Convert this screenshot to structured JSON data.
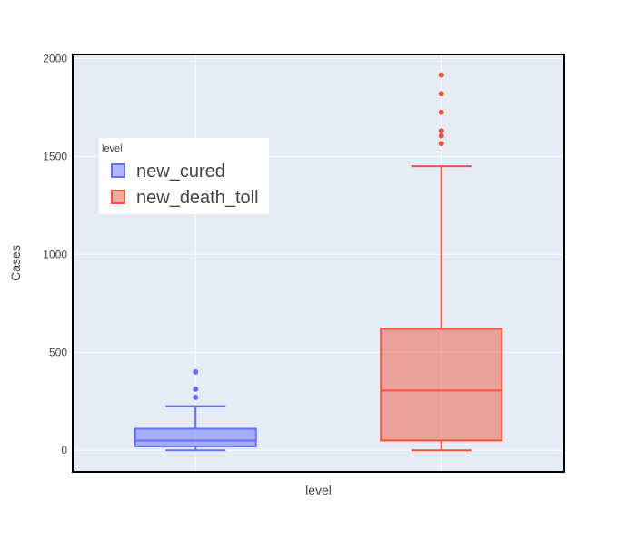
{
  "chart_data": {
    "type": "box",
    "xlabel": "level",
    "ylabel": "Cases",
    "ylim": [
      -110,
      2020
    ],
    "yticks": [
      0,
      500,
      1000,
      1500,
      2000
    ],
    "yticklabels": [
      "0",
      "500",
      "1000",
      "1500",
      "2000"
    ],
    "grid": true,
    "legend": {
      "title": "level",
      "placement": "upper-left inside plot",
      "entries": [
        "new_cured",
        "new_death_toll"
      ]
    },
    "series": [
      {
        "name": "new_cured",
        "color": "#636efa",
        "fill": "rgba(99,110,250,0.5)",
        "lower_fence": 0,
        "q1": 20,
        "median": 50,
        "q3": 110,
        "upper_fence": 225,
        "outliers": [
          270,
          312,
          400
        ]
      },
      {
        "name": "new_death_toll",
        "color": "#ef553b",
        "fill": "rgba(239,85,59,0.5)",
        "lower_fence": 0,
        "q1": 50,
        "median": 305,
        "q3": 620,
        "upper_fence": 1450,
        "outliers": [
          1565,
          1605,
          1630,
          1725,
          1820,
          1915
        ]
      }
    ]
  }
}
